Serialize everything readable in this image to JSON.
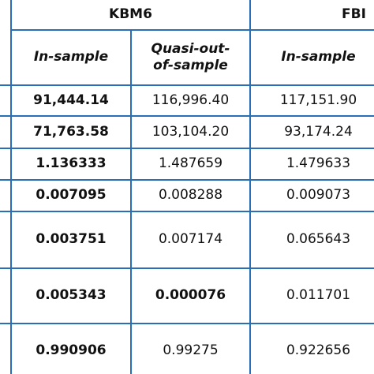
{
  "header": {
    "groups": [
      "KBM6",
      "FBI"
    ],
    "columns": [
      "In-sample",
      "Quasi-out-of-sample",
      "In-sample"
    ]
  },
  "table": {
    "rows": [
      [
        "91,444.14",
        "116,996.40",
        "117,151.90"
      ],
      [
        "71,763.58",
        "103,104.20",
        "93,174.24"
      ],
      [
        "1.136333",
        "1.487659",
        "1.479633"
      ],
      [
        "0.007095",
        "0.008288",
        "0.009073"
      ],
      [
        "0.003751",
        "0.007174",
        "0.065643"
      ],
      [
        "0.005343",
        "0.000076",
        "0.011701"
      ],
      [
        "0.990906",
        "0.99275",
        "0.922656"
      ]
    ]
  }
}
